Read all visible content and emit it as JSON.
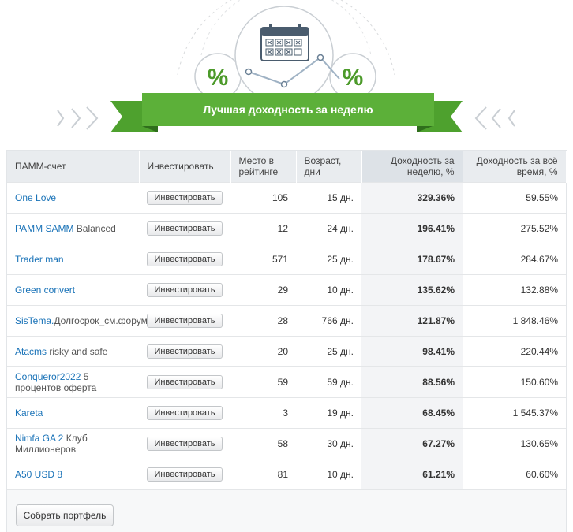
{
  "banner": {
    "title": "Лучшая доходность за неделю",
    "percent_left": "%",
    "percent_right": "%"
  },
  "table": {
    "headers": {
      "account": "ПАММ-счет",
      "invest": "Инвестировать",
      "rank": "Место в рейтинге",
      "age": "Возраст, дни",
      "weekly": "Доходность за неделю, %",
      "total": "Доходность за всё время, %"
    },
    "invest_label": "Инвестировать",
    "rows": [
      {
        "name_link": "One Love",
        "name_rest": "",
        "rank": "105",
        "age": "15 дн.",
        "weekly": "329.36%",
        "total": "59.55%"
      },
      {
        "name_link": "PAMM SAMM",
        "name_rest": " Balanced",
        "rank": "12",
        "age": "24 дн.",
        "weekly": "196.41%",
        "total": "275.52%"
      },
      {
        "name_link": "Trader man",
        "name_rest": "",
        "rank": "571",
        "age": "25 дн.",
        "weekly": "178.67%",
        "total": "284.67%"
      },
      {
        "name_link": "Green convert",
        "name_rest": "",
        "rank": "29",
        "age": "10 дн.",
        "weekly": "135.62%",
        "total": "132.88%"
      },
      {
        "name_link": "SisTema.",
        "name_rest": "Долгосрок_см.форум",
        "rank": "28",
        "age": "766 дн.",
        "weekly": "121.87%",
        "total": "1 848.46%"
      },
      {
        "name_link": "Atacms",
        "name_rest": " risky and safe",
        "rank": "20",
        "age": "25 дн.",
        "weekly": "98.41%",
        "total": "220.44%"
      },
      {
        "name_link": "Conqueror2022",
        "name_rest": " 5 процентов оферта",
        "rank": "59",
        "age": "59 дн.",
        "weekly": "88.56%",
        "total": "150.60%"
      },
      {
        "name_link": "Kareta",
        "name_rest": "",
        "rank": "3",
        "age": "19 дн.",
        "weekly": "68.45%",
        "total": "1 545.37%"
      },
      {
        "name_link": "Nimfa GA 2",
        "name_rest": " Клуб Миллионеров",
        "rank": "58",
        "age": "30 дн.",
        "weekly": "67.27%",
        "total": "130.65%"
      },
      {
        "name_link": "A50 USD 8",
        "name_rest": "",
        "rank": "81",
        "age": "10 дн.",
        "weekly": "61.21%",
        "total": "60.60%"
      }
    ]
  },
  "footer": {
    "portfolio_label": "Собрать портфель"
  },
  "colors": {
    "banner_green": "#5cb039",
    "banner_dark": "#3e8a28",
    "link": "#1a73b8"
  }
}
